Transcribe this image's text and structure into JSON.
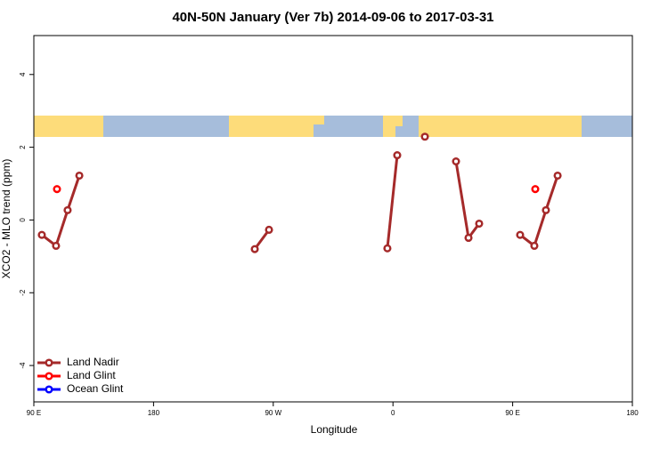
{
  "chart_data": {
    "type": "line",
    "title": "40N-50N January (Ver 7b)   2014-09-06 to 2017-03-31",
    "x_label": "Longitude",
    "y_label": "XCO2 - MLO trend (ppm)",
    "xlim": [
      90,
      540
    ],
    "xticks": [
      {
        "value": 90,
        "label": "90 E"
      },
      {
        "value": 180,
        "label": "180"
      },
      {
        "value": 270,
        "label": "90 W"
      },
      {
        "value": 360,
        "label": "0"
      },
      {
        "value": 450,
        "label": "90 E"
      },
      {
        "value": 540,
        "label": "180"
      }
    ],
    "ylim": [
      -5,
      5.07
    ],
    "yticks": [
      -4,
      -2,
      0,
      2,
      4
    ],
    "legend": "bottom-left",
    "series": [
      {
        "name": "Land Nadir",
        "color": "#a52a2a",
        "x": [
          96.0,
          106.7,
          115.4,
          124.2,
          null,
          256.1,
          266.8,
          null,
          355.8,
          363.2,
          null,
          384.0,
          null,
          407.4,
          416.8,
          424.8,
          null,
          455.6,
          466.3,
          475.0,
          483.8
        ],
        "values": [
          -0.41,
          -0.71,
          0.27,
          1.22,
          null,
          -0.8,
          -0.27,
          null,
          -0.78,
          1.78,
          null,
          2.29,
          null,
          1.61,
          -0.49,
          -0.1,
          null,
          -0.41,
          -0.71,
          0.27,
          1.22
        ]
      },
      {
        "name": "Land Glint",
        "color": "#ff0000",
        "x": [
          107.4,
          467.0
        ],
        "values": [
          0.85,
          0.85
        ]
      },
      {
        "name": "Ocean Glint",
        "color": "#0000ff",
        "x": [],
        "values": []
      }
    ]
  }
}
